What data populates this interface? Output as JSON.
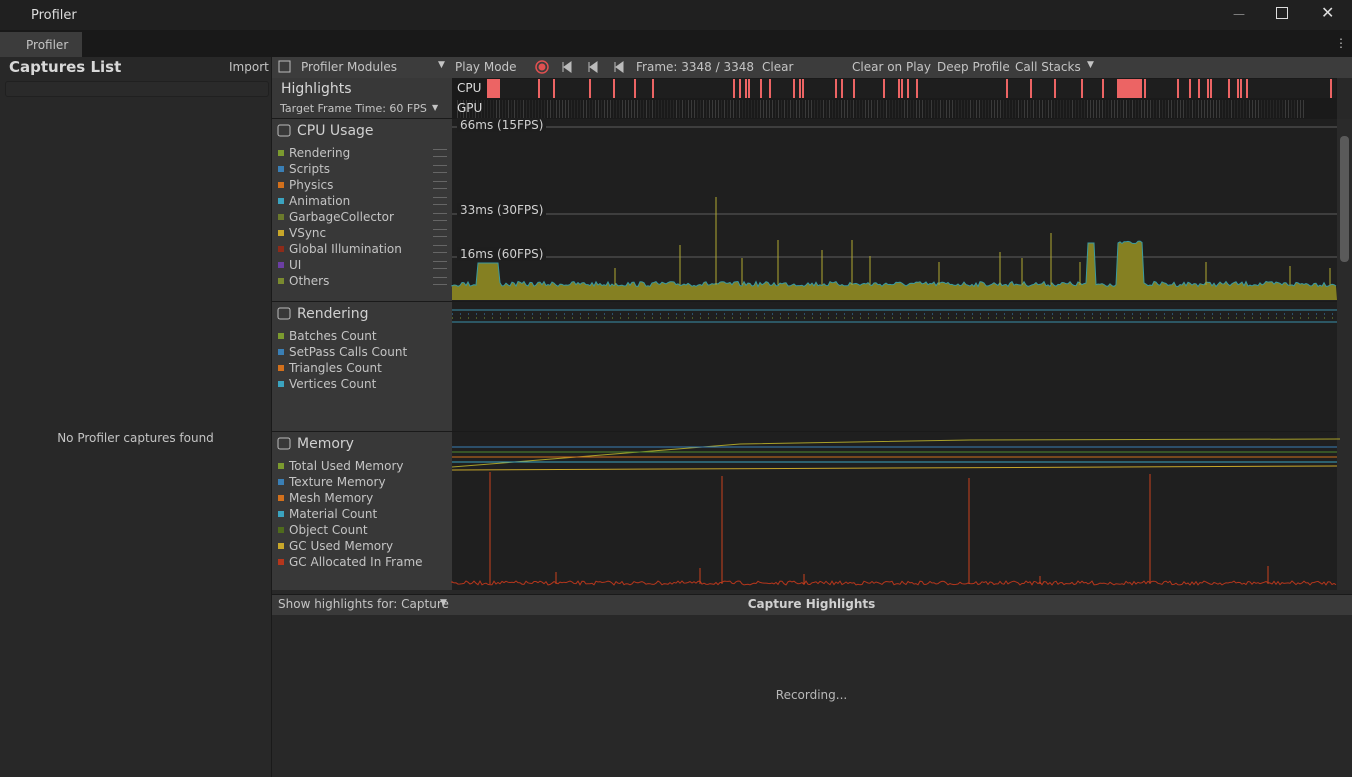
{
  "window": {
    "title": "Profiler",
    "tab": "Profiler"
  },
  "captures": {
    "title": "Captures List",
    "import": "Import",
    "empty": "No Profiler captures found"
  },
  "toolbar": {
    "modules": "Profiler Modules",
    "play_mode": "Play Mode",
    "frame": "Frame: 3348 / 3348",
    "clear": "Clear",
    "clear_on_play": "Clear on Play",
    "deep_profile": "Deep Profile",
    "call_stacks": "Call Stacks"
  },
  "highlights": {
    "title": "Highlights",
    "target": "Target Frame Time: 60 FPS",
    "cpu": "CPU",
    "gpu": "GPU"
  },
  "cpu_markers": [
    "66ms (15FPS)",
    "33ms (30FPS)",
    "16ms (60FPS)"
  ],
  "modules": [
    {
      "title": "CPU Usage",
      "items": [
        {
          "label": "Rendering",
          "color": "#7b9a2f"
        },
        {
          "label": "Scripts",
          "color": "#3a7fb5"
        },
        {
          "label": "Physics",
          "color": "#d2701c"
        },
        {
          "label": "Animation",
          "color": "#3ba3bf"
        },
        {
          "label": "GarbageCollector",
          "color": "#6b7a2c"
        },
        {
          "label": "VSync",
          "color": "#c8a72a"
        },
        {
          "label": "Global Illumination",
          "color": "#8e2b19"
        },
        {
          "label": "UI",
          "color": "#6b3ea3"
        },
        {
          "label": "Others",
          "color": "#7a8a2f"
        }
      ]
    },
    {
      "title": "Rendering",
      "items": [
        {
          "label": "Batches Count",
          "color": "#7b9a2f"
        },
        {
          "label": "SetPass Calls Count",
          "color": "#3a7fb5"
        },
        {
          "label": "Triangles Count",
          "color": "#d2701c"
        },
        {
          "label": "Vertices Count",
          "color": "#3ba3bf"
        }
      ]
    },
    {
      "title": "Memory",
      "items": [
        {
          "label": "Total Used Memory",
          "color": "#7b9a2f"
        },
        {
          "label": "Texture Memory",
          "color": "#3a7fb5"
        },
        {
          "label": "Mesh Memory",
          "color": "#d2701c"
        },
        {
          "label": "Material Count",
          "color": "#3ba3bf"
        },
        {
          "label": "Object Count",
          "color": "#4f6b1c"
        },
        {
          "label": "GC Used Memory",
          "color": "#c8a72a"
        },
        {
          "label": "GC Allocated In Frame",
          "color": "#b5361c"
        }
      ]
    }
  ],
  "bottom": {
    "show": "Show highlights for: Capture",
    "header": "Capture Highlights",
    "status": "Recording..."
  }
}
